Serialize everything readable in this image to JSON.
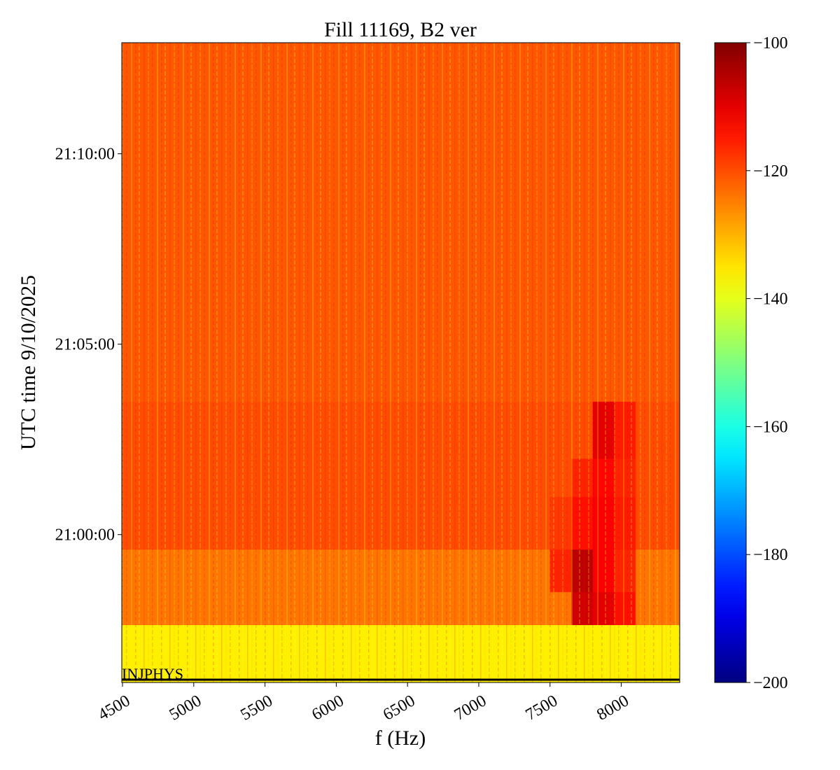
{
  "chart_data": {
    "type": "heatmap",
    "title": "Fill 11169, B2 ver",
    "xlabel": "f (Hz)",
    "ylabel": "UTC time 9/10/2025",
    "x_edges": [
      4495,
      5000,
      5500,
      6000,
      6500,
      7000,
      7500,
      7650,
      7800,
      7950,
      8100,
      8410
    ],
    "y_edges": [
      "20:56:07",
      "20:57:38",
      "20:58:30",
      "20:59:37",
      "21:01:00",
      "21:02:00",
      "21:03:30",
      "21:05:00",
      "21:10:00",
      "21:12:55"
    ],
    "z": [
      [
        -136,
        -136,
        -136,
        -136,
        -136,
        -136,
        -136,
        -136,
        -136,
        -136,
        -136
      ],
      [
        -124,
        -124,
        -124,
        -124,
        -124,
        -124,
        -124,
        -108,
        -110,
        -114,
        -124
      ],
      [
        -124,
        -124,
        -124,
        -124,
        -124,
        -124,
        -116,
        -106,
        -112,
        -116,
        -124
      ],
      [
        -120,
        -120,
        -120,
        -120,
        -120,
        -120,
        -118,
        -114,
        -112,
        -115,
        -120
      ],
      [
        -120,
        -120,
        -120,
        -120,
        -120,
        -120,
        -120,
        -116,
        -113,
        -116,
        -120
      ],
      [
        -120,
        -120,
        -120,
        -120,
        -120,
        -120,
        -120,
        -120,
        -110,
        -115,
        -120
      ],
      [
        -121,
        -121,
        -121,
        -121,
        -121,
        -121,
        -121,
        -121,
        -121,
        -121,
        -121
      ],
      [
        -121,
        -121,
        -121,
        -121,
        -121,
        -121,
        -121,
        -121,
        -121,
        -121,
        -121
      ],
      [
        -121,
        -121,
        -121,
        -121,
        -121,
        -121,
        -121,
        -121,
        -121,
        -121,
        -121
      ]
    ],
    "xlim": [
      4495,
      8410
    ],
    "xticks": [
      4500,
      5000,
      5500,
      6000,
      6500,
      7000,
      7500,
      8000
    ],
    "ylim": [
      "20:56:07",
      "21:12:55"
    ],
    "yticks": [
      "21:00:00",
      "21:05:00",
      "21:10:00"
    ],
    "colormap": "jet",
    "clim": [
      -200,
      -100
    ],
    "cticks": [
      {
        "value": -100,
        "label": "−100"
      },
      {
        "value": -120,
        "label": "−120"
      },
      {
        "value": -140,
        "label": "−140"
      },
      {
        "value": -160,
        "label": "−160"
      },
      {
        "value": -180,
        "label": "−180"
      },
      {
        "value": -200,
        "label": "−200"
      }
    ],
    "annotation": "INJPHYS"
  }
}
